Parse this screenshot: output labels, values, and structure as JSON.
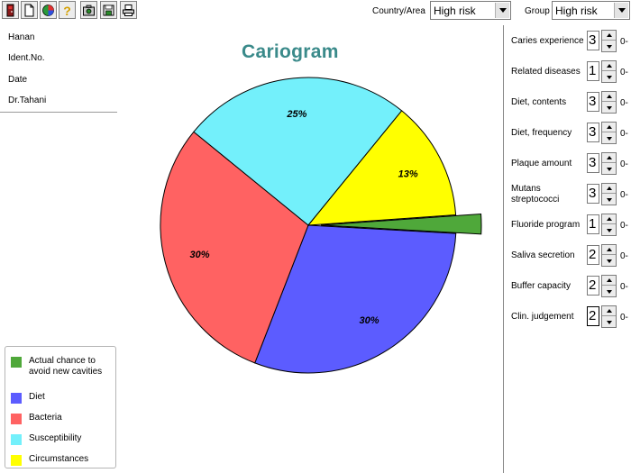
{
  "toolbar": {
    "buttons": [
      {
        "icon": "exit-icon"
      },
      {
        "icon": "new-document-icon"
      },
      {
        "icon": "chart-icon"
      },
      {
        "icon": "help-icon"
      },
      {
        "icon": "camera-icon"
      },
      {
        "icon": "save-icon"
      },
      {
        "icon": "print-icon"
      }
    ],
    "country_label": "Country/Area",
    "country_value": "High risk",
    "group_label": "Group",
    "group_value": "High risk"
  },
  "patient": {
    "name": "Hanan",
    "ident_label": "Ident.No.",
    "date_label": "Date",
    "doctor": "Dr.Tahani"
  },
  "title": "Cariogram",
  "chart_data": {
    "type": "pie",
    "title": "Cariogram",
    "slices": [
      {
        "label": "Actual chance to avoid new cavities",
        "value": 2,
        "value_label": "",
        "color": "#4fa83a",
        "exploded": true
      },
      {
        "label": "Diet",
        "value": 30,
        "value_label": "30%",
        "color": "#5c5cff"
      },
      {
        "label": "Bacteria",
        "value": 30,
        "value_label": "30%",
        "color": "#ff6262"
      },
      {
        "label": "Susceptibility",
        "value": 25,
        "value_label": "25%",
        "color": "#73f0fb"
      },
      {
        "label": "Circumstances",
        "value": 13,
        "value_label": "13%",
        "color": "#ffff00"
      }
    ]
  },
  "legend": [
    {
      "label": "Actual chance to avoid new cavities",
      "color": "#4fa83a"
    },
    {
      "label": "Diet",
      "color": "#5c5cff"
    },
    {
      "label": "Bacteria",
      "color": "#ff6262"
    },
    {
      "label": "Susceptibility",
      "color": "#73f0fb"
    },
    {
      "label": "Circumstances",
      "color": "#ffff00"
    }
  ],
  "parameters": [
    {
      "label": "Caries experience",
      "value": "3",
      "range": "0-"
    },
    {
      "label": "Related diseases",
      "value": "1",
      "range": "0-"
    },
    {
      "label": "Diet, contents",
      "value": "3",
      "range": "0-"
    },
    {
      "label": "Diet, frequency",
      "value": "3",
      "range": "0-"
    },
    {
      "label": "Plaque amount",
      "value": "3",
      "range": "0-"
    },
    {
      "label": "Mutans streptococci",
      "value": "3",
      "range": "0-"
    },
    {
      "label": "Fluoride program",
      "value": "1",
      "range": "0-"
    },
    {
      "label": "Saliva secretion",
      "value": "2",
      "range": "0-"
    },
    {
      "label": "Buffer capacity",
      "value": "2",
      "range": "0-"
    },
    {
      "label": "Clin. judgement",
      "value": "2",
      "range": "0-"
    }
  ]
}
